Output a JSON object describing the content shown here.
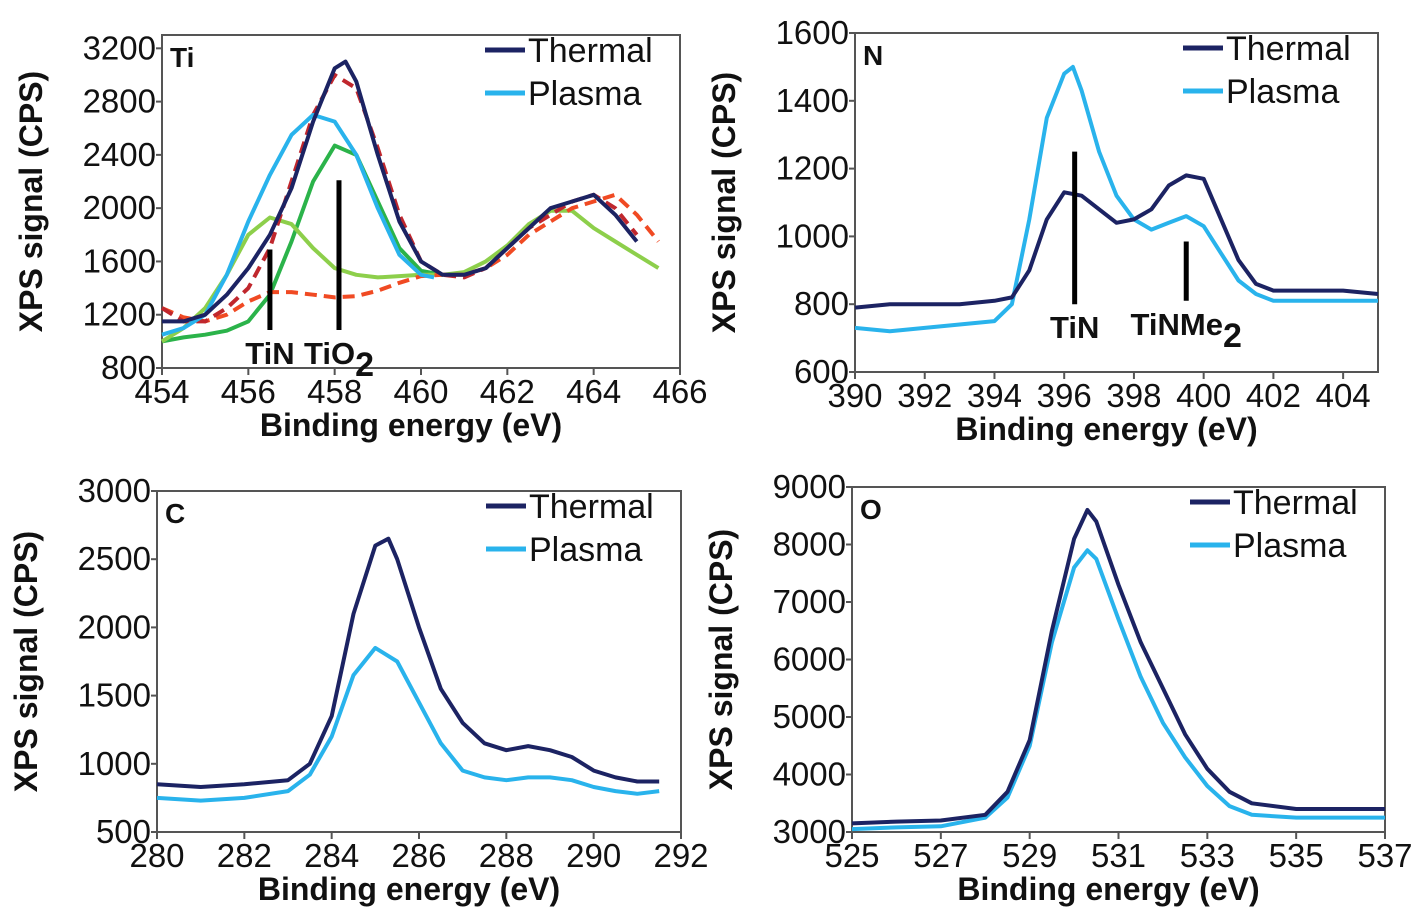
{
  "chart_data": [
    {
      "type": "line",
      "panel_label": "Ti",
      "xlabel": "Binding energy (eV)",
      "ylabel": "XPS signal (CPS)",
      "xlim": [
        454,
        466
      ],
      "ylim": [
        800,
        3300
      ],
      "xticks": [
        "454",
        "456",
        "458",
        "460",
        "462",
        "464",
        "466"
      ],
      "yticks": [
        "800",
        "1200",
        "1600",
        "2000",
        "2400",
        "2800",
        "3200"
      ],
      "grid": false,
      "legend_position": "top-right",
      "series": [
        {
          "name": "Thermal",
          "color": "#1c2363",
          "style": "solid",
          "x": [
            454,
            454.5,
            455,
            455.5,
            456,
            456.5,
            457,
            457.5,
            458,
            458.25,
            458.5,
            459,
            459.5,
            460,
            460.5,
            461,
            461.5,
            462,
            462.5,
            463,
            463.5,
            464,
            464.5,
            465
          ],
          "y": [
            1150,
            1150,
            1200,
            1350,
            1550,
            1800,
            2150,
            2650,
            3050,
            3100,
            2950,
            2400,
            1900,
            1600,
            1500,
            1500,
            1550,
            1700,
            1850,
            2000,
            2050,
            2100,
            1950,
            1750
          ]
        },
        {
          "name": "Plasma",
          "color": "#29b3ec",
          "style": "solid",
          "x": [
            454,
            454.5,
            455,
            455.5,
            456,
            456.5,
            457,
            457.5,
            458,
            458.5,
            459,
            459.5,
            460,
            460.3
          ],
          "y": [
            1050,
            1100,
            1200,
            1500,
            1900,
            2250,
            2550,
            2700,
            2650,
            2400,
            2000,
            1650,
            1500,
            1480
          ]
        },
        {
          "color": "#c0272d",
          "style": "dashed",
          "x": [
            454,
            454.5,
            455,
            455.5,
            456,
            456.5,
            457,
            457.5,
            458,
            458.5,
            459,
            459.5,
            460,
            460.5,
            461,
            461.5,
            462,
            462.5,
            463,
            463.5,
            464,
            464.5,
            465
          ],
          "y": [
            1250,
            1150,
            1150,
            1250,
            1400,
            1700,
            2200,
            2700,
            3000,
            2900,
            2450,
            1950,
            1600,
            1500,
            1480,
            1550,
            1700,
            1850,
            1950,
            2050,
            2100,
            2000,
            1800
          ]
        },
        {
          "color": "#f04a23",
          "style": "dashed",
          "x": [
            454,
            454.5,
            455,
            455.5,
            456,
            456.5,
            457,
            457.5,
            458,
            458.5,
            459,
            459.5,
            460,
            460.5,
            461,
            461.5,
            462,
            462.5,
            463,
            463.5,
            464,
            464.5,
            465,
            465.5
          ],
          "y": [
            1250,
            1180,
            1150,
            1200,
            1300,
            1370,
            1370,
            1350,
            1330,
            1340,
            1380,
            1440,
            1490,
            1500,
            1500,
            1550,
            1650,
            1800,
            1900,
            2000,
            2050,
            2100,
            1950,
            1750
          ]
        },
        {
          "color": "#8dcf4b",
          "style": "solid",
          "x": [
            454,
            454.5,
            455,
            455.5,
            456,
            456.5,
            457,
            457.5,
            458,
            458.5,
            459,
            459.5,
            460,
            460.5,
            461,
            461.5,
            462,
            462.5,
            463,
            463.5,
            464,
            464.5,
            465,
            465.5
          ],
          "y": [
            1000,
            1100,
            1250,
            1500,
            1800,
            1930,
            1880,
            1700,
            1550,
            1500,
            1480,
            1490,
            1500,
            1500,
            1520,
            1600,
            1720,
            1880,
            1980,
            1980,
            1850,
            1750,
            1650,
            1550
          ]
        },
        {
          "color": "#2bb34a",
          "style": "solid",
          "x": [
            454,
            454.5,
            455,
            455.5,
            456,
            456.5,
            457,
            457.5,
            458,
            458.5,
            459,
            459.5,
            460,
            460.5
          ],
          "y": [
            1000,
            1030,
            1050,
            1080,
            1150,
            1350,
            1750,
            2200,
            2470,
            2400,
            2050,
            1700,
            1530,
            1500
          ]
        }
      ],
      "annotations": [
        {
          "text": "TiN",
          "sub": "",
          "x": 456.5,
          "y_from": 1085,
          "y_to": 1690
        },
        {
          "text": "TiO",
          "sub": "2",
          "x": 458.1,
          "y_from": 1085,
          "y_to": 2210
        }
      ]
    },
    {
      "type": "line",
      "panel_label": "N",
      "xlabel": "Binding energy (eV)",
      "ylabel": "XPS signal (CPS)",
      "xlim": [
        390,
        405
      ],
      "ylim": [
        600,
        1600
      ],
      "xticks": [
        "390",
        "392",
        "394",
        "396",
        "398",
        "400",
        "402",
        "404"
      ],
      "yticks": [
        "600",
        "800",
        "1000",
        "1200",
        "1400",
        "1600"
      ],
      "grid": false,
      "legend_position": "top-right",
      "series": [
        {
          "name": "Thermal",
          "color": "#1c2363",
          "style": "solid",
          "x": [
            390,
            391,
            392,
            393,
            394,
            394.5,
            395,
            395.5,
            396,
            396.5,
            397,
            397.5,
            398,
            398.5,
            399,
            399.5,
            400,
            400.5,
            401,
            401.5,
            402,
            403,
            404,
            405
          ],
          "y": [
            790,
            800,
            800,
            800,
            810,
            820,
            900,
            1050,
            1130,
            1120,
            1080,
            1040,
            1050,
            1080,
            1150,
            1180,
            1170,
            1050,
            930,
            860,
            840,
            840,
            840,
            830
          ]
        },
        {
          "name": "Plasma",
          "color": "#29b3ec",
          "style": "solid",
          "x": [
            390,
            391,
            392,
            393,
            394,
            394.5,
            395,
            395.5,
            396,
            396.25,
            396.5,
            397,
            397.5,
            398,
            398.5,
            399,
            399.5,
            400,
            400.5,
            401,
            401.5,
            402,
            403,
            404,
            405
          ],
          "y": [
            730,
            720,
            730,
            740,
            750,
            800,
            1050,
            1350,
            1480,
            1500,
            1430,
            1250,
            1120,
            1050,
            1020,
            1040,
            1060,
            1030,
            950,
            870,
            830,
            810,
            810,
            810,
            810
          ]
        }
      ],
      "annotations": [
        {
          "text": "TiN",
          "sub": "",
          "x": 396.3,
          "y_from": 800,
          "y_to": 1250
        },
        {
          "text": "TiNMe",
          "sub": "2",
          "x": 399.5,
          "y_from": 810,
          "y_to": 985
        }
      ]
    },
    {
      "type": "line",
      "panel_label": "C",
      "xlabel": "Binding energy (eV)",
      "ylabel": "XPS signal (CPS)",
      "xlim": [
        280,
        292
      ],
      "ylim": [
        500,
        3000
      ],
      "xticks": [
        "280",
        "282",
        "284",
        "286",
        "288",
        "290",
        "292"
      ],
      "yticks": [
        "500",
        "1000",
        "1500",
        "2000",
        "2500",
        "3000"
      ],
      "grid": false,
      "legend_position": "top-right",
      "series": [
        {
          "name": "Thermal",
          "color": "#1c2363",
          "style": "solid",
          "x": [
            280,
            281,
            282,
            283,
            283.5,
            284,
            284.5,
            285,
            285.3,
            285.5,
            286,
            286.5,
            287,
            287.5,
            288,
            288.5,
            289,
            289.5,
            290,
            290.5,
            291,
            291.5
          ],
          "y": [
            850,
            830,
            850,
            880,
            1000,
            1350,
            2100,
            2600,
            2650,
            2500,
            2000,
            1550,
            1300,
            1150,
            1100,
            1130,
            1100,
            1050,
            950,
            900,
            870,
            870
          ]
        },
        {
          "name": "Plasma",
          "color": "#29b3ec",
          "style": "solid",
          "x": [
            280,
            281,
            282,
            283,
            283.5,
            284,
            284.5,
            285,
            285.5,
            286,
            286.5,
            287,
            287.5,
            288,
            288.5,
            289,
            289.5,
            290,
            290.5,
            291,
            291.5
          ],
          "y": [
            750,
            730,
            750,
            800,
            920,
            1200,
            1650,
            1850,
            1750,
            1450,
            1150,
            950,
            900,
            880,
            900,
            900,
            880,
            830,
            800,
            780,
            800
          ]
        }
      ],
      "annotations": []
    },
    {
      "type": "line",
      "panel_label": "O",
      "xlabel": "Binding energy (eV)",
      "ylabel": "XPS signal (CPS)",
      "xlim": [
        525,
        537
      ],
      "ylim": [
        3000,
        9000
      ],
      "xticks": [
        "525",
        "527",
        "529",
        "531",
        "533",
        "535",
        "537"
      ],
      "yticks": [
        "3000",
        "4000",
        "5000",
        "6000",
        "7000",
        "8000",
        "9000"
      ],
      "grid": false,
      "legend_position": "top-right",
      "series": [
        {
          "name": "Thermal",
          "color": "#1c2363",
          "style": "solid",
          "x": [
            525,
            526,
            527,
            528,
            528.5,
            529,
            529.5,
            530,
            530.3,
            530.5,
            531,
            531.5,
            532,
            532.5,
            533,
            533.5,
            534,
            535,
            536,
            537
          ],
          "y": [
            3150,
            3180,
            3200,
            3300,
            3700,
            4600,
            6500,
            8100,
            8600,
            8400,
            7300,
            6300,
            5500,
            4700,
            4100,
            3700,
            3500,
            3400,
            3400,
            3400
          ]
        },
        {
          "name": "Plasma",
          "color": "#29b3ec",
          "style": "solid",
          "x": [
            525,
            526,
            527,
            528,
            528.5,
            529,
            529.5,
            530,
            530.3,
            530.5,
            531,
            531.5,
            532,
            532.5,
            533,
            533.5,
            534,
            535,
            536,
            537
          ],
          "y": [
            3050,
            3080,
            3100,
            3250,
            3600,
            4500,
            6300,
            7600,
            7900,
            7750,
            6700,
            5700,
            4900,
            4300,
            3800,
            3450,
            3300,
            3250,
            3250,
            3250
          ]
        }
      ],
      "annotations": []
    }
  ]
}
